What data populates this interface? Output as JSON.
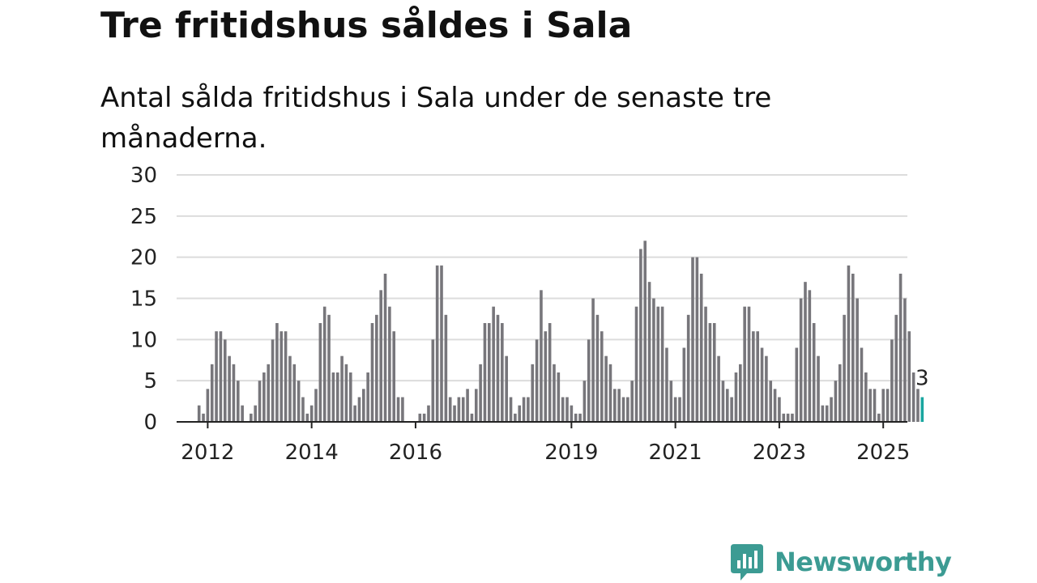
{
  "title": "Tre fritidshus såldes i Sala",
  "subtitle": "Antal sålda fritidshus i Sala under de senaste tre månaderna.",
  "brand": {
    "name": "Newsworthy",
    "logo_icon": "chat-bar-chart-icon",
    "color": "#3c9b93"
  },
  "chart_data": {
    "type": "bar",
    "ylim": [
      0,
      30
    ],
    "yticks": [
      0,
      5,
      10,
      15,
      20,
      25,
      30
    ],
    "xtick_labels": [
      "2012",
      "2014",
      "2016",
      "2019",
      "2021",
      "2023",
      "2025"
    ],
    "xtick_years": [
      2012,
      2014,
      2016,
      2019,
      2021,
      2023,
      2025
    ],
    "grid": true,
    "bar_color": "#77767b",
    "highlight_color": "#1aa6a0",
    "start": "2011-09",
    "values": [
      0,
      0,
      2,
      1,
      4,
      7,
      11,
      11,
      10,
      8,
      7,
      5,
      2,
      0,
      1,
      2,
      5,
      6,
      7,
      10,
      12,
      11,
      11,
      8,
      7,
      5,
      3,
      1,
      2,
      4,
      12,
      14,
      13,
      6,
      6,
      8,
      7,
      6,
      2,
      3,
      4,
      6,
      12,
      13,
      16,
      18,
      14,
      11,
      3,
      3,
      0,
      0,
      0,
      1,
      1,
      2,
      10,
      19,
      19,
      13,
      3,
      2,
      3,
      3,
      4,
      1,
      4,
      7,
      12,
      12,
      14,
      13,
      12,
      8,
      3,
      1,
      2,
      3,
      3,
      7,
      10,
      16,
      11,
      12,
      7,
      6,
      3,
      3,
      2,
      1,
      1,
      5,
      10,
      15,
      13,
      11,
      8,
      7,
      4,
      4,
      3,
      3,
      5,
      14,
      21,
      22,
      17,
      15,
      14,
      14,
      9,
      5,
      3,
      3,
      9,
      13,
      20,
      20,
      18,
      14,
      12,
      12,
      8,
      5,
      4,
      3,
      6,
      7,
      14,
      14,
      11,
      11,
      9,
      8,
      5,
      4,
      3,
      1,
      1,
      1,
      9,
      15,
      17,
      16,
      12,
      8,
      2,
      2,
      3,
      5,
      7,
      13,
      19,
      18,
      15,
      9,
      6,
      4,
      4,
      1,
      4,
      4,
      10,
      13,
      18,
      15,
      11,
      6,
      4,
      3
    ],
    "last_value_label": "3"
  }
}
